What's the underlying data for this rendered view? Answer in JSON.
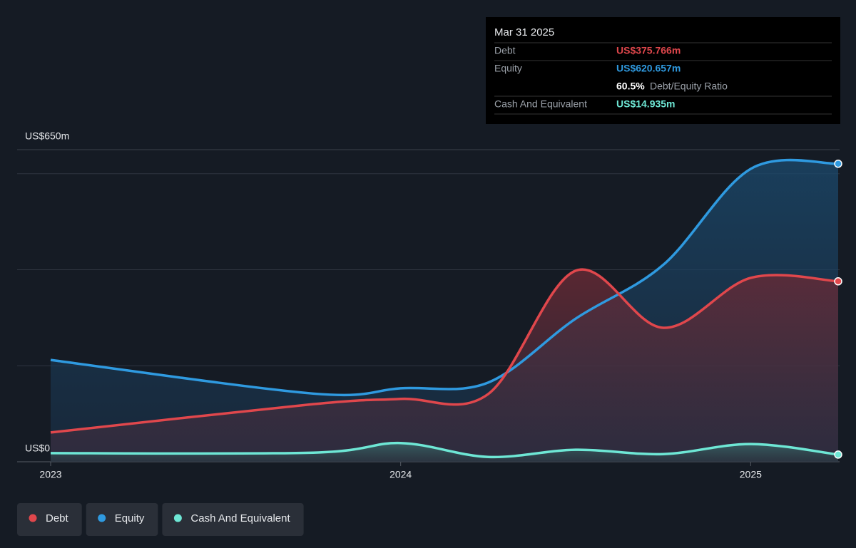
{
  "chart_data": {
    "type": "line",
    "x": [
      2023,
      2023.75,
      2024,
      2024.25,
      2024.5,
      2024.75,
      2025,
      2025.25
    ],
    "xlim": [
      2023,
      2025.25
    ],
    "xticks": [
      2023,
      2024,
      2025
    ],
    "ylim": [
      0,
      650
    ],
    "yticks": [
      {
        "value": 0,
        "label": "US$0"
      },
      {
        "value": 650,
        "label": "US$650m"
      }
    ],
    "grid_values": [
      200,
      400,
      600
    ],
    "series": [
      {
        "name": "Debt",
        "color": "#e0474c",
        "values": [
          61,
          120,
          131,
          141,
          398,
          279,
          383,
          375.766
        ]
      },
      {
        "name": "Equity",
        "color": "#2f9ae0",
        "values": [
          212,
          142,
          153,
          165,
          298,
          410,
          610,
          620.657
        ]
      },
      {
        "name": "Cash And Equivalent",
        "color": "#6ee7d5",
        "values": [
          18,
          19,
          39,
          10,
          25,
          16,
          37,
          14.935
        ]
      }
    ],
    "tooltip": {
      "date": "Mar 31 2025",
      "debt_label": "Debt",
      "debt_value": "US$375.766m",
      "equity_label": "Equity",
      "equity_value": "US$620.657m",
      "ratio_value": "60.5%",
      "ratio_label": "Debt/Equity Ratio",
      "cash_label": "Cash And Equivalent",
      "cash_value": "US$14.935m"
    }
  }
}
